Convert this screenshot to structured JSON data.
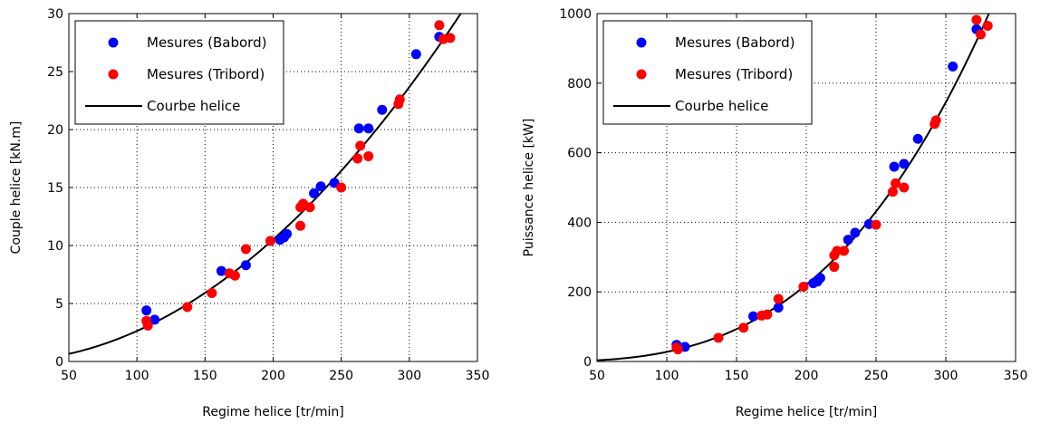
{
  "charts": [
    {
      "type": "scatter",
      "xlabel": "Regime helice [tr/min]",
      "ylabel": "Couple helice [kN.m]",
      "xlim": [
        50,
        350
      ],
      "ylim": [
        0,
        30
      ],
      "xticks": [
        50,
        100,
        150,
        200,
        250,
        300,
        350
      ],
      "yticks": [
        0,
        5,
        10,
        15,
        20,
        25,
        30
      ],
      "grid": true,
      "legend_position": "top-left",
      "series": [
        {
          "name": "Mesures (Babord)",
          "color": "#0000ff",
          "marker": "circle",
          "points": [
            [
              107,
              4.4
            ],
            [
              113,
              3.6
            ],
            [
              162,
              7.8
            ],
            [
              180,
              8.3
            ],
            [
              205,
              10.5
            ],
            [
              210,
              11.0
            ],
            [
              208,
              10.7
            ],
            [
              230,
              14.5
            ],
            [
              235,
              15.1
            ],
            [
              245,
              15.4
            ],
            [
              263,
              20.1
            ],
            [
              270,
              20.1
            ],
            [
              280,
              21.7
            ],
            [
              305,
              26.5
            ],
            [
              322,
              28.0
            ]
          ]
        },
        {
          "name": "Mesures (Tribord)",
          "color": "#ff0000",
          "marker": "circle",
          "points": [
            [
              107,
              3.5
            ],
            [
              108,
              3.1
            ],
            [
              137,
              4.7
            ],
            [
              155,
              5.9
            ],
            [
              168,
              7.6
            ],
            [
              172,
              7.4
            ],
            [
              180,
              9.7
            ],
            [
              198,
              10.4
            ],
            [
              220,
              11.7
            ],
            [
              220,
              13.3
            ],
            [
              222,
              13.6
            ],
            [
              227,
              13.3
            ],
            [
              250,
              15.0
            ],
            [
              262,
              17.5
            ],
            [
              264,
              18.6
            ],
            [
              270,
              17.7
            ],
            [
              292,
              22.2
            ],
            [
              293,
              22.6
            ],
            [
              322,
              29.0
            ],
            [
              325,
              27.8
            ],
            [
              330,
              27.9
            ]
          ]
        },
        {
          "name": "Courbe helice",
          "color": "#000000",
          "type": "line",
          "function": "a*x^2",
          "coefficient": 0.000263
        }
      ]
    },
    {
      "type": "scatter",
      "xlabel": "Regime helice [tr/min]",
      "ylabel": "Puissance helice [kW]",
      "xlim": [
        50,
        350
      ],
      "ylim": [
        0,
        1000
      ],
      "xticks": [
        50,
        100,
        150,
        200,
        250,
        300,
        350
      ],
      "yticks": [
        0,
        200,
        400,
        600,
        800,
        1000
      ],
      "grid": true,
      "legend_position": "top-left",
      "series": [
        {
          "name": "Mesures (Babord)",
          "color": "#0000ff",
          "marker": "circle",
          "points": [
            [
              107,
              48
            ],
            [
              113,
              42
            ],
            [
              162,
              130
            ],
            [
              180,
              155
            ],
            [
              205,
              225
            ],
            [
              210,
              240
            ],
            [
              208,
              230
            ],
            [
              230,
              350
            ],
            [
              235,
              370
            ],
            [
              245,
              395
            ],
            [
              263,
              560
            ],
            [
              270,
              568
            ],
            [
              280,
              640
            ],
            [
              305,
              848
            ],
            [
              322,
              955
            ]
          ]
        },
        {
          "name": "Mesures (Tribord)",
          "color": "#ff0000",
          "marker": "circle",
          "points": [
            [
              107,
              40
            ],
            [
              108,
              35
            ],
            [
              137,
              68
            ],
            [
              155,
              97
            ],
            [
              168,
              132
            ],
            [
              172,
              135
            ],
            [
              180,
              180
            ],
            [
              198,
              215
            ],
            [
              220,
              272
            ],
            [
              220,
              305
            ],
            [
              222,
              318
            ],
            [
              227,
              318
            ],
            [
              250,
              393
            ],
            [
              262,
              488
            ],
            [
              264,
              512
            ],
            [
              270,
              500
            ],
            [
              292,
              683
            ],
            [
              293,
              693
            ],
            [
              322,
              982
            ],
            [
              325,
              940
            ],
            [
              330,
              965
            ]
          ]
        },
        {
          "name": "Courbe helice",
          "color": "#000000",
          "type": "line",
          "function": "a*x^3",
          "coefficient": 2.76e-05
        }
      ]
    }
  ]
}
